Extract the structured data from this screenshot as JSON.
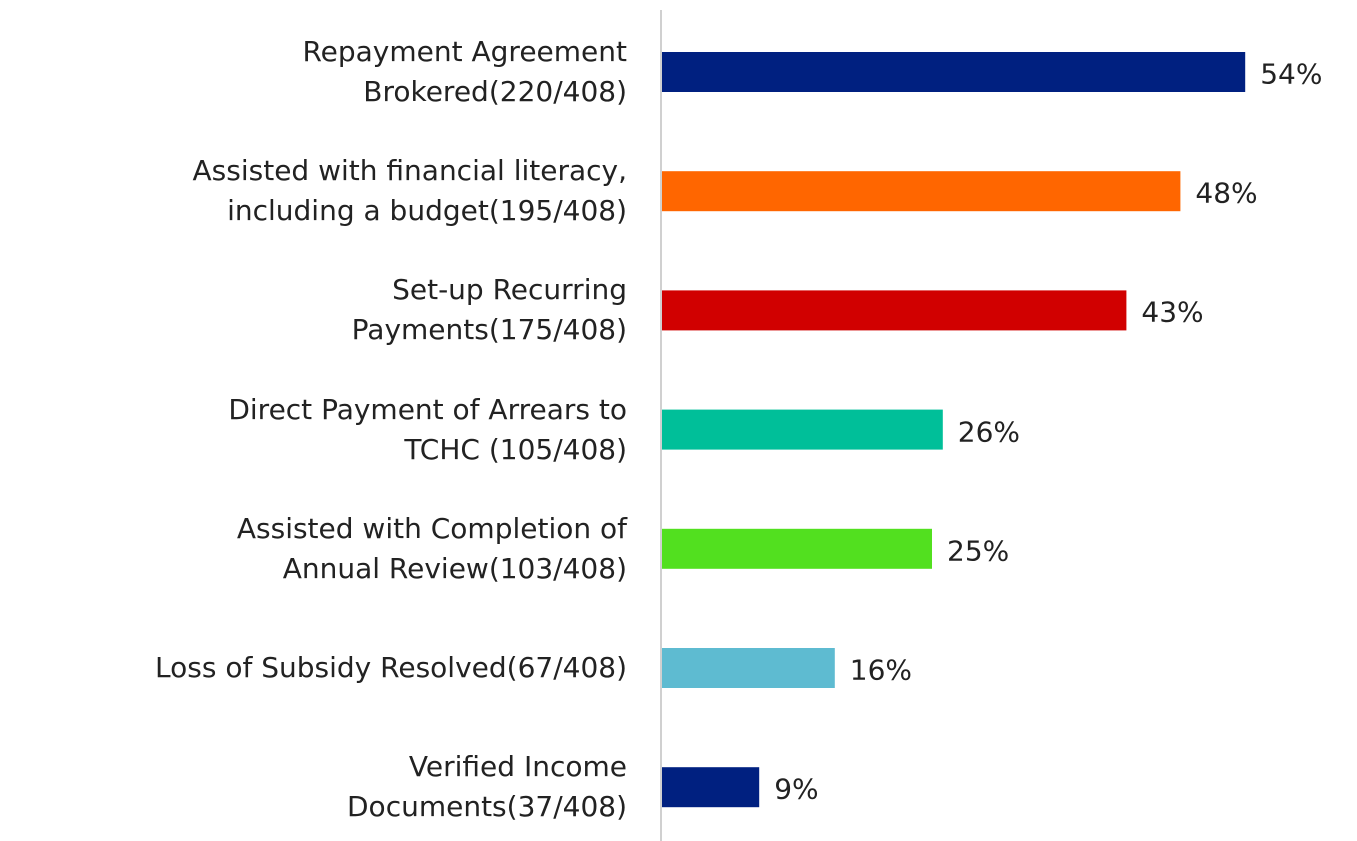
{
  "chart_data": {
    "type": "bar",
    "orientation": "horizontal",
    "categories": [
      "Repayment Agreement\nBrokered(220/408)",
      "Assisted with financial literacy,\nincluding a budget(195/408)",
      "Set-up Recurring\nPayments(175/408)",
      "Direct Payment of Arrears to\nTCHC (105/408)",
      "Assisted with Completion of\nAnnual Review(103/408)",
      "Loss of Subsidy Resolved(67/408)",
      "Verified Income\nDocuments(37/408)"
    ],
    "values": [
      54,
      48,
      43,
      26,
      25,
      16,
      9
    ],
    "value_labels": [
      "54%",
      "48%",
      "43%",
      "26%",
      "25%",
      "16%",
      "9%"
    ],
    "colors": [
      "#002080",
      "#ff6600",
      "#d10000",
      "#00bf99",
      "#52e01f",
      "#5ebbd1",
      "#002080"
    ]
  }
}
